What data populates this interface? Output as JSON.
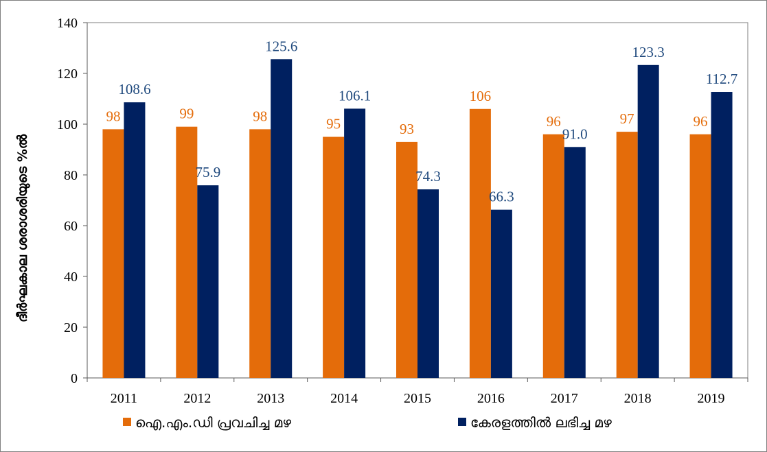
{
  "chart_data": {
    "type": "bar",
    "ylabel": "ദീർഘകാല ശരാശരിയുടെ %ൽ",
    "xlabel": "",
    "ylim": [
      0,
      140
    ],
    "yticks": [
      0,
      20,
      40,
      60,
      80,
      100,
      120,
      140
    ],
    "categories": [
      "2011",
      "2012",
      "2013",
      "2014",
      "2015",
      "2016",
      "2017",
      "2018",
      "2019"
    ],
    "series": [
      {
        "name": "ഐ.എം.ഡി പ്രവചിച്ച മഴ",
        "color": "#e46c0a",
        "values": [
          98,
          99,
          98,
          95,
          93,
          106,
          96,
          97,
          96
        ],
        "labels": [
          "98",
          "99",
          "98",
          "95",
          "93",
          "106",
          "96",
          "97",
          "96"
        ]
      },
      {
        "name": "കേരളത്തിൽ ലഭിച്ച മഴ",
        "color": "#002060",
        "label_color": "#1f497d",
        "values": [
          108.6,
          75.9,
          125.6,
          106.1,
          74.3,
          66.3,
          91.0,
          123.3,
          112.7
        ],
        "labels": [
          "108.6",
          "75.9",
          "125.6",
          "106.1",
          "74.3",
          "66.3",
          "91.0",
          "123.3",
          "112.7"
        ]
      }
    ],
    "grid": false,
    "legend_position": "bottom"
  }
}
